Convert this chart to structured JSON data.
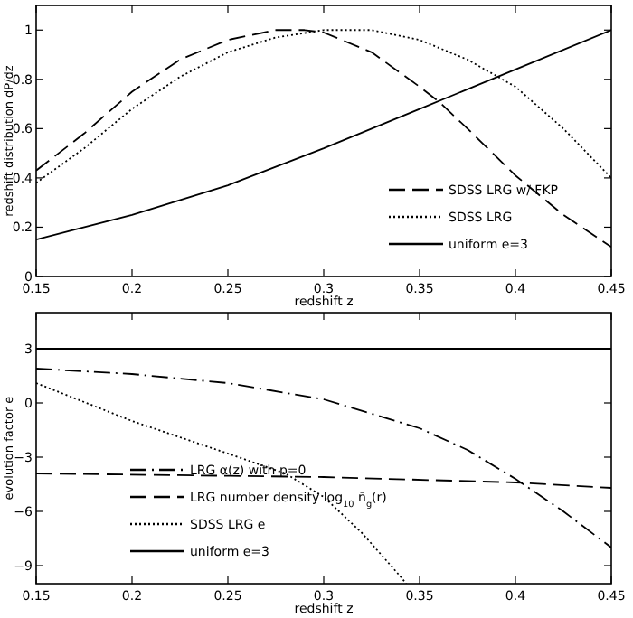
{
  "chart_data": [
    {
      "type": "line",
      "xlabel": "redshift z",
      "ylabel": "redshift distribution dP/dz",
      "xlim": [
        0.15,
        0.45
      ],
      "ylim": [
        0,
        1.1
      ],
      "xticks": [
        0.15,
        0.2,
        0.25,
        0.3,
        0.35,
        0.4,
        0.45
      ],
      "yticks": [
        0,
        0.2,
        0.4,
        0.6,
        0.8,
        1
      ],
      "legend": "bottom right",
      "grid": false,
      "series": [
        {
          "name": "SDSS LRG w/ FKP",
          "color": "#000000",
          "line_style": "dashed",
          "x": [
            0.15,
            0.175,
            0.2,
            0.225,
            0.25,
            0.275,
            0.29,
            0.3,
            0.325,
            0.35,
            0.36,
            0.375,
            0.4,
            0.425,
            0.45
          ],
          "values": [
            0.43,
            0.58,
            0.75,
            0.88,
            0.96,
            1.0,
            1.0,
            0.99,
            0.91,
            0.77,
            0.71,
            0.6,
            0.41,
            0.25,
            0.12
          ]
        },
        {
          "name": "SDSS LRG",
          "color": "#000000",
          "line_style": "dotted",
          "x": [
            0.15,
            0.175,
            0.2,
            0.225,
            0.25,
            0.275,
            0.3,
            0.325,
            0.35,
            0.375,
            0.4,
            0.425,
            0.45
          ],
          "values": [
            0.38,
            0.52,
            0.68,
            0.81,
            0.91,
            0.97,
            1.0,
            1.0,
            0.96,
            0.88,
            0.77,
            0.6,
            0.4
          ]
        },
        {
          "name": "uniform e=3",
          "color": "#000000",
          "line_style": "solid",
          "x": [
            0.15,
            0.2,
            0.25,
            0.3,
            0.35,
            0.4,
            0.45
          ],
          "values": [
            0.15,
            0.25,
            0.37,
            0.52,
            0.68,
            0.84,
            1.0
          ]
        }
      ]
    },
    {
      "type": "line",
      "xlabel": "redshift z",
      "ylabel": "evolution factor e",
      "xlim": [
        0.15,
        0.45
      ],
      "ylim": [
        -10,
        5
      ],
      "xticks": [
        0.15,
        0.2,
        0.25,
        0.3,
        0.35,
        0.4,
        0.45
      ],
      "yticks": [
        {
          "value": 3,
          "label": "3"
        },
        {
          "value": 0,
          "label": "0"
        },
        {
          "value": -3,
          "label": "−3"
        },
        {
          "value": -6,
          "label": "−6"
        },
        {
          "value": -9,
          "label": "−9"
        }
      ],
      "legend": "bottom left",
      "grid": false,
      "series": [
        {
          "name": "LRG α(z) with p=0",
          "color": "#000000",
          "line_style": "dashdot",
          "x": [
            0.15,
            0.2,
            0.25,
            0.3,
            0.35,
            0.375,
            0.4,
            0.425,
            0.45
          ],
          "values": [
            1.9,
            1.6,
            1.1,
            0.2,
            -1.4,
            -2.6,
            -4.2,
            -6,
            -8
          ]
        },
        {
          "name": "LRG number density log$_{10}$ n̄$_{g}$(r)",
          "color": "#000000",
          "line_style": "dashed",
          "x": [
            0.15,
            0.3,
            0.4,
            0.45
          ],
          "values": [
            -3.9,
            -4.1,
            -4.4,
            -4.7
          ]
        },
        {
          "name": "SDSS LRG e",
          "color": "#000000",
          "line_style": "dotted",
          "x": [
            0.15,
            0.2,
            0.25,
            0.28,
            0.3,
            0.32,
            0.34,
            0.343
          ],
          "values": [
            1.1,
            -1.0,
            -2.8,
            -3.9,
            -5.2,
            -7.2,
            -9.6,
            -10
          ]
        },
        {
          "name": "uniform e=3",
          "color": "#000000",
          "line_style": "solid",
          "x": [
            0.15,
            0.45
          ],
          "values": [
            3,
            3
          ]
        }
      ]
    }
  ]
}
